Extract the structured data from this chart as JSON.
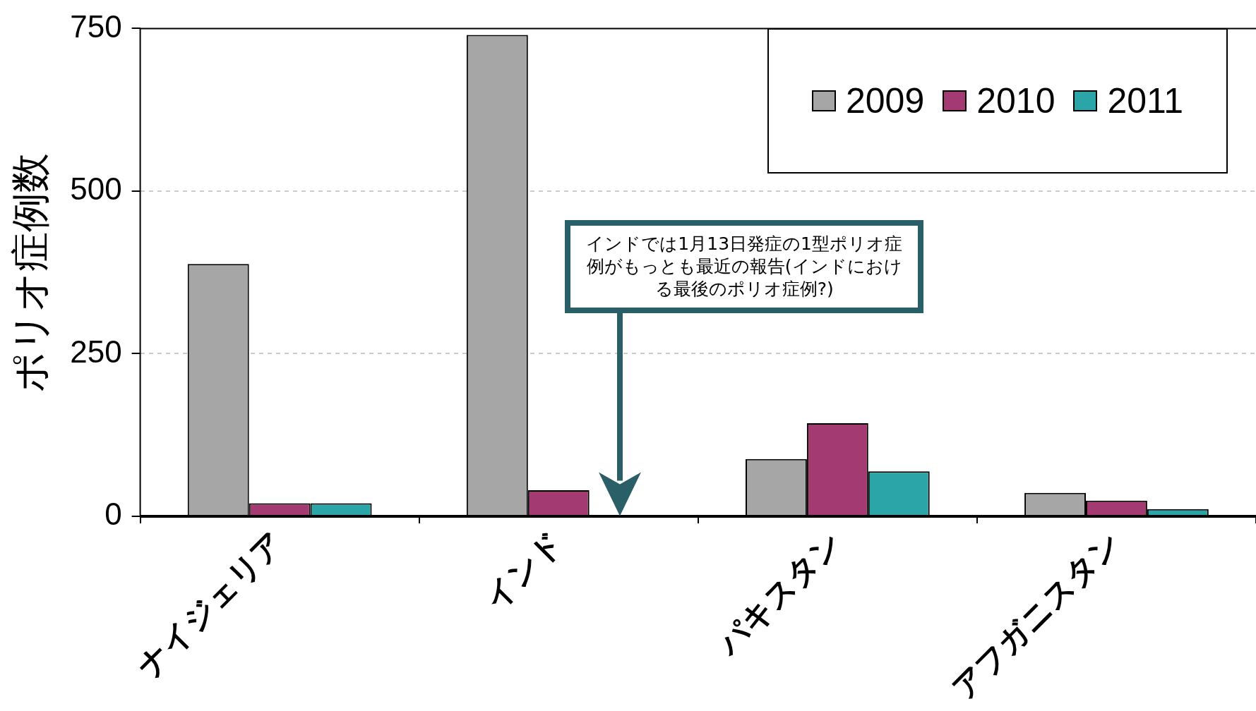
{
  "chart_data": {
    "type": "bar",
    "ylabel": "ポリオ症例数",
    "categories": [
      "ナイジェリア",
      "インド",
      "パキスタン",
      "アフガニスタン"
    ],
    "series": [
      {
        "name": "2009",
        "color": "#a6a6a6",
        "values": [
          388,
          740,
          88,
          36
        ]
      },
      {
        "name": "2010",
        "color": "#a33b72",
        "values": [
          20,
          40,
          143,
          24
        ]
      },
      {
        "name": "2011",
        "color": "#2ca5a8",
        "values": [
          20,
          0,
          69,
          11
        ]
      }
    ],
    "ylim": [
      0,
      750
    ],
    "yticks": [
      0,
      250,
      500,
      750
    ],
    "grid": "y",
    "legend": "top right",
    "annotations": [
      "インドでは1月13日発症の1型ポリオ症例がもっとも最近の報告(インドにおける最後のポリオ症例?)"
    ]
  }
}
